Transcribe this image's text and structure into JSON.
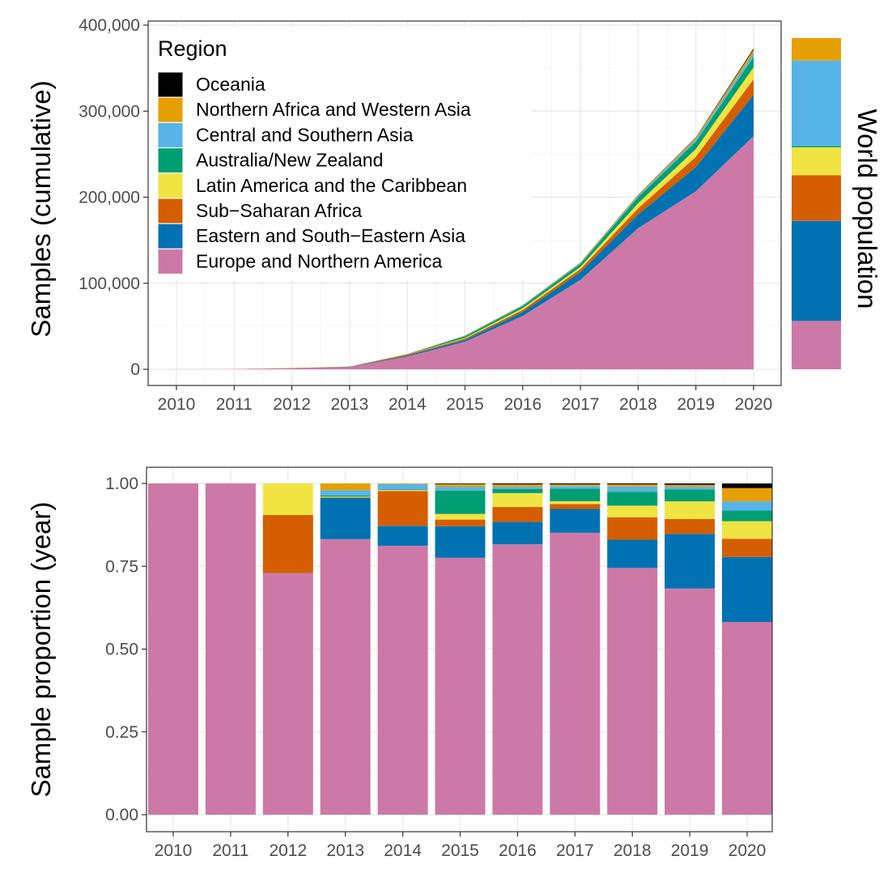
{
  "regions": [
    {
      "name": "Europe and Northern America",
      "color": "#CC79A7"
    },
    {
      "name": "Eastern and South−Eastern Asia",
      "color": "#0072B2"
    },
    {
      "name": "Sub−Saharan Africa",
      "color": "#D55E00"
    },
    {
      "name": "Latin America and the Caribbean",
      "color": "#F0E442"
    },
    {
      "name": "Australia/New Zealand",
      "color": "#009E73"
    },
    {
      "name": "Central and Southern Asia",
      "color": "#56B4E9"
    },
    {
      "name": "Northern Africa and Western Asia",
      "color": "#E69F00"
    },
    {
      "name": "Oceania",
      "color": "#000000"
    }
  ],
  "legend": {
    "title": "Region",
    "order": [
      "Oceania",
      "Northern Africa and Western Asia",
      "Central and Southern Asia",
      "Australia/New Zealand",
      "Latin America and the Caribbean",
      "Sub−Saharan Africa",
      "Eastern and South−Eastern Asia",
      "Europe and Northern America"
    ]
  },
  "chart_data": [
    {
      "type": "area",
      "ylabel": "Samples (cumulative)",
      "xlabel": "",
      "x": [
        2010,
        2011,
        2012,
        2013,
        2014,
        2015,
        2016,
        2017,
        2018,
        2019,
        2020
      ],
      "x_tick_labels": [
        "2010",
        "2011",
        "2012",
        "2013",
        "2014",
        "2015",
        "2016",
        "2017",
        "2018",
        "2019",
        "2020"
      ],
      "ylim": [
        0,
        400000
      ],
      "y_ticks": [
        0,
        100000,
        200000,
        300000,
        400000
      ],
      "y_tick_labels": [
        "0",
        "100,000",
        "200,000",
        "300,000",
        "400,000"
      ],
      "stacked": true,
      "grid": true,
      "legend_position": "top-left inside",
      "series": [
        {
          "name": "Europe and Northern America",
          "values": [
            30,
            150,
            1300,
            2400,
            14800,
            32000,
            62000,
            104000,
            164000,
            207000,
            271000
          ]
        },
        {
          "name": "Eastern and South−Eastern Asia",
          "values": [
            0,
            0,
            0,
            400,
            1000,
            2200,
            4500,
            9000,
            16000,
            28000,
            48000
          ]
        },
        {
          "name": "Sub−Saharan Africa",
          "values": [
            0,
            0,
            200,
            200,
            1200,
            1500,
            2500,
            3500,
            7000,
            12000,
            18000
          ]
        },
        {
          "name": "Latin America and the Caribbean",
          "values": [
            0,
            0,
            100,
            100,
            200,
            800,
            2000,
            2500,
            6000,
            9000,
            14000
          ]
        },
        {
          "name": "Australia/New Zealand",
          "values": [
            0,
            0,
            0,
            0,
            300,
            2000,
            2500,
            3500,
            7000,
            8500,
            12000
          ]
        },
        {
          "name": "Central and Southern Asia",
          "values": [
            0,
            0,
            0,
            100,
            200,
            400,
            600,
            900,
            1600,
            2700,
            4500
          ]
        },
        {
          "name": "Northern Africa and Western Asia",
          "values": [
            0,
            0,
            0,
            100,
            150,
            300,
            500,
            700,
            1200,
            2000,
            4000
          ]
        },
        {
          "name": "Oceania",
          "values": [
            0,
            0,
            0,
            0,
            0,
            50,
            100,
            150,
            200,
            400,
            1500
          ]
        }
      ]
    },
    {
      "type": "bar",
      "label": "World population",
      "stacked": true,
      "categories": [
        "World population"
      ],
      "series": [
        {
          "name": "Europe and Northern America",
          "values": [
            0.146
          ]
        },
        {
          "name": "Eastern and South−Eastern Asia",
          "values": [
            0.302
          ]
        },
        {
          "name": "Sub−Saharan Africa",
          "values": [
            0.138
          ]
        },
        {
          "name": "Latin America and the Caribbean",
          "values": [
            0.084
          ]
        },
        {
          "name": "Australia/New Zealand",
          "values": [
            0.004
          ]
        },
        {
          "name": "Central and Southern Asia",
          "values": [
            0.258
          ]
        },
        {
          "name": "Northern Africa and Western Asia",
          "values": [
            0.068
          ]
        },
        {
          "name": "Oceania",
          "values": [
            0.0
          ]
        }
      ]
    },
    {
      "type": "bar",
      "stacked": true,
      "ylabel": "Sample proportion (year)",
      "xlabel": "",
      "categories": [
        "2010",
        "2011",
        "2012",
        "2013",
        "2014",
        "2015",
        "2016",
        "2017",
        "2018",
        "2019",
        "2020"
      ],
      "ylim": [
        0,
        1.05
      ],
      "y_ticks": [
        0,
        0.25,
        0.5,
        0.75,
        1.0
      ],
      "y_tick_labels": [
        "0.00",
        "0.25",
        "0.50",
        "0.75",
        "1.00"
      ],
      "grid": true,
      "series": [
        {
          "name": "Europe and Northern America",
          "values": [
            1.0,
            1.0,
            0.73,
            0.832,
            0.812,
            0.776,
            0.816,
            0.851,
            0.745,
            0.683,
            0.582
          ]
        },
        {
          "name": "Eastern and South−Eastern Asia",
          "values": [
            0,
            0,
            0,
            0.124,
            0.06,
            0.095,
            0.068,
            0.072,
            0.085,
            0.165,
            0.196
          ]
        },
        {
          "name": "Sub−Saharan Africa",
          "values": [
            0,
            0,
            0.175,
            0.002,
            0.105,
            0.02,
            0.045,
            0.015,
            0.068,
            0.045,
            0.055
          ]
        },
        {
          "name": "Latin America and the Caribbean",
          "values": [
            0,
            0,
            0.095,
            0.002,
            0.003,
            0.017,
            0.042,
            0.008,
            0.035,
            0.053,
            0.053
          ]
        },
        {
          "name": "Australia/New Zealand",
          "values": [
            0,
            0,
            0,
            0.004,
            0.002,
            0.07,
            0.012,
            0.038,
            0.042,
            0.036,
            0.032
          ]
        },
        {
          "name": "Central and Southern Asia",
          "values": [
            0,
            0,
            0,
            0.016,
            0.016,
            0.012,
            0.007,
            0.008,
            0.016,
            0.008,
            0.028
          ]
        },
        {
          "name": "Northern Africa and Western Asia",
          "values": [
            0,
            0,
            0,
            0.02,
            0.002,
            0.008,
            0.007,
            0.005,
            0.006,
            0.006,
            0.04
          ]
        },
        {
          "name": "Oceania",
          "values": [
            0,
            0,
            0,
            0,
            0,
            0.002,
            0.003,
            0.003,
            0.003,
            0.004,
            0.014
          ]
        }
      ]
    }
  ]
}
